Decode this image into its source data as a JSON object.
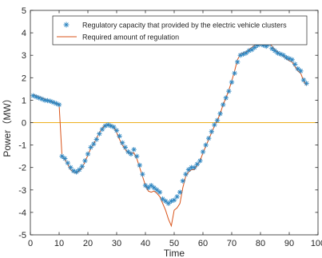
{
  "colors": {
    "regulatory_marker": "#2E86C1",
    "required_line": "#D95319",
    "zero_line": "#EDB120",
    "axes": "#262626",
    "background": "#ffffff"
  },
  "chart_data": {
    "type": "line",
    "xlabel": "Time",
    "ylabel": "Power（MW）",
    "xlim": [
      0,
      100
    ],
    "ylim": [
      -5,
      5
    ],
    "xticks": [
      "0",
      "10",
      "20",
      "30",
      "40",
      "50",
      "60",
      "70",
      "80",
      "90",
      "100"
    ],
    "yticks": [
      "5",
      "4",
      "3",
      "2",
      "1",
      "0",
      "-1",
      "-2",
      "-3",
      "-4",
      "-5"
    ],
    "grid": false,
    "legend_position": "top",
    "series": [
      {
        "name": "Regulatory capacity that provided by the electric vehicle clusters",
        "marker": "asterisk",
        "x": [
          1,
          2,
          3,
          4,
          5,
          6,
          7,
          8,
          9,
          10,
          11,
          12,
          13,
          14,
          15,
          16,
          17,
          18,
          19,
          20,
          21,
          22,
          23,
          24,
          25,
          26,
          27,
          28,
          29,
          30,
          31,
          32,
          33,
          34,
          35,
          36,
          37,
          38,
          39,
          40,
          41,
          42,
          43,
          44,
          45,
          46,
          47,
          48,
          49,
          50,
          51,
          52,
          53,
          54,
          55,
          56,
          57,
          58,
          59,
          60,
          61,
          62,
          63,
          64,
          65,
          66,
          67,
          68,
          69,
          70,
          71,
          72,
          73,
          74,
          75,
          76,
          77,
          78,
          79,
          80,
          81,
          82,
          83,
          84,
          85,
          86,
          87,
          88,
          89,
          90,
          91,
          92,
          93,
          94,
          95,
          96
        ],
        "values": [
          1.2,
          1.15,
          1.1,
          1.05,
          1.0,
          0.98,
          0.95,
          0.9,
          0.85,
          0.8,
          -1.5,
          -1.6,
          -1.8,
          -2.0,
          -2.15,
          -2.2,
          -2.1,
          -1.95,
          -1.7,
          -1.4,
          -1.1,
          -0.95,
          -0.75,
          -0.5,
          -0.3,
          -0.15,
          -0.1,
          -0.15,
          -0.2,
          -0.35,
          -0.6,
          -0.9,
          -1.1,
          -1.3,
          -1.4,
          -1.2,
          -1.5,
          -1.9,
          -2.3,
          -2.8,
          -2.9,
          -2.8,
          -2.9,
          -3.0,
          -3.1,
          -3.4,
          -3.5,
          -3.6,
          -3.5,
          -3.45,
          -3.3,
          -3.1,
          -2.6,
          -2.3,
          -2.1,
          -2.0,
          -2.0,
          -1.85,
          -1.7,
          -1.3,
          -1.0,
          -0.7,
          -0.4,
          -0.1,
          0.1,
          0.4,
          0.8,
          1.1,
          1.4,
          1.8,
          2.2,
          2.7,
          3.0,
          3.05,
          3.1,
          3.2,
          3.25,
          3.35,
          3.45,
          3.5,
          3.45,
          3.4,
          3.5,
          3.3,
          3.2,
          3.1,
          3.05,
          3.0,
          2.9,
          2.85,
          2.8,
          2.6,
          2.4,
          2.3,
          1.9,
          1.75
        ]
      },
      {
        "name": "Required amount of regulation",
        "marker": "line",
        "x": [
          1,
          2,
          3,
          4,
          5,
          6,
          7,
          8,
          9,
          10,
          11,
          12,
          13,
          14,
          15,
          16,
          17,
          18,
          19,
          20,
          21,
          22,
          23,
          24,
          25,
          26,
          27,
          28,
          29,
          30,
          31,
          32,
          33,
          34,
          35,
          36,
          37,
          38,
          39,
          40,
          41,
          42,
          43,
          44,
          45,
          46,
          47,
          48,
          49,
          50,
          51,
          52,
          53,
          54,
          55,
          56,
          57,
          58,
          59,
          60,
          61,
          62,
          63,
          64,
          65,
          66,
          67,
          68,
          69,
          70,
          71,
          72,
          73,
          74,
          75,
          76,
          77,
          78,
          79,
          80,
          81,
          82,
          83,
          84,
          85,
          86,
          87,
          88,
          89,
          90,
          91,
          92,
          93,
          94,
          95,
          96
        ],
        "values": [
          1.25,
          1.2,
          1.15,
          1.1,
          1.05,
          1.0,
          0.95,
          0.9,
          0.85,
          0.8,
          -1.5,
          -1.65,
          -1.85,
          -2.1,
          -2.2,
          -2.25,
          -2.15,
          -2.0,
          -1.75,
          -1.45,
          -1.15,
          -0.95,
          -0.7,
          -0.45,
          -0.25,
          -0.1,
          -0.1,
          -0.1,
          -0.2,
          -0.45,
          -0.75,
          -1.0,
          -1.2,
          -1.35,
          -1.35,
          -1.35,
          -1.6,
          -2.0,
          -2.4,
          -2.8,
          -3.05,
          -3.1,
          -3.05,
          -3.15,
          -3.3,
          -3.6,
          -3.9,
          -4.3,
          -4.6,
          -3.9,
          -3.8,
          -3.6,
          -2.9,
          -2.4,
          -2.2,
          -2.1,
          -2.1,
          -1.9,
          -1.7,
          -1.35,
          -1.05,
          -0.75,
          -0.45,
          -0.15,
          0.1,
          0.4,
          0.8,
          1.1,
          1.45,
          1.85,
          2.3,
          2.8,
          3.05,
          3.1,
          3.15,
          3.25,
          3.35,
          3.45,
          3.55,
          3.6,
          3.6,
          3.6,
          3.6,
          3.4,
          3.25,
          3.15,
          3.05,
          2.95,
          2.85,
          2.75,
          2.7,
          2.5,
          2.3,
          2.2,
          1.85,
          1.65
        ]
      }
    ],
    "reference_line": {
      "y": 0
    }
  }
}
